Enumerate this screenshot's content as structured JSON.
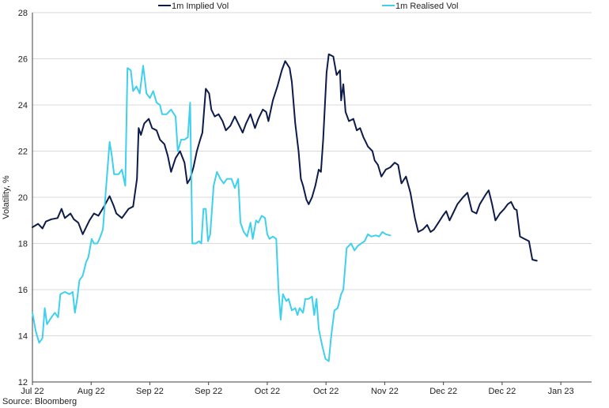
{
  "chart_data": {
    "type": "line",
    "ylabel": "Volatility, %",
    "ylim": [
      12,
      28
    ],
    "yticks": [
      12,
      14,
      16,
      18,
      20,
      22,
      24,
      26,
      28
    ],
    "xlim": [
      0,
      1
    ],
    "xticks": [
      {
        "x": 0.0,
        "label": "Jul 22"
      },
      {
        "x": 0.105,
        "label": "Aug 22"
      },
      {
        "x": 0.21,
        "label": "Sep 22"
      },
      {
        "x": 0.315,
        "label": "Sep 22"
      },
      {
        "x": 0.42,
        "label": "Oct 22"
      },
      {
        "x": 0.525,
        "label": "Oct 22"
      },
      {
        "x": 0.63,
        "label": "Nov 22"
      },
      {
        "x": 0.735,
        "label": "Dec 22"
      },
      {
        "x": 0.84,
        "label": "Dec 22"
      },
      {
        "x": 0.945,
        "label": "Jan 23"
      }
    ],
    "grid": "horizontal",
    "legend": "top",
    "source": "Source: Bloomberg",
    "series": [
      {
        "name": "1m Implied Vol",
        "color": "#0d1b4b",
        "points": [
          [
            0.0,
            18.7
          ],
          [
            0.01,
            18.85
          ],
          [
            0.018,
            18.65
          ],
          [
            0.024,
            18.95
          ],
          [
            0.034,
            19.05
          ],
          [
            0.045,
            19.1
          ],
          [
            0.052,
            19.5
          ],
          [
            0.058,
            19.1
          ],
          [
            0.068,
            19.3
          ],
          [
            0.074,
            19.05
          ],
          [
            0.082,
            18.9
          ],
          [
            0.09,
            18.4
          ],
          [
            0.102,
            19.0
          ],
          [
            0.11,
            19.3
          ],
          [
            0.118,
            19.2
          ],
          [
            0.128,
            19.6
          ],
          [
            0.138,
            20.05
          ],
          [
            0.145,
            19.65
          ],
          [
            0.15,
            19.3
          ],
          [
            0.16,
            19.1
          ],
          [
            0.172,
            19.5
          ],
          [
            0.18,
            19.6
          ],
          [
            0.187,
            20.8
          ],
          [
            0.19,
            23.0
          ],
          [
            0.194,
            22.7
          ],
          [
            0.2,
            23.2
          ],
          [
            0.208,
            23.4
          ],
          [
            0.214,
            23.0
          ],
          [
            0.222,
            22.9
          ],
          [
            0.228,
            22.5
          ],
          [
            0.236,
            22.3
          ],
          [
            0.242,
            21.8
          ],
          [
            0.248,
            21.1
          ],
          [
            0.256,
            21.7
          ],
          [
            0.264,
            22.0
          ],
          [
            0.272,
            21.5
          ],
          [
            0.277,
            20.6
          ],
          [
            0.282,
            20.8
          ],
          [
            0.288,
            21.3
          ],
          [
            0.294,
            22.0
          ],
          [
            0.3,
            22.5
          ],
          [
            0.304,
            22.8
          ],
          [
            0.31,
            24.7
          ],
          [
            0.316,
            24.5
          ],
          [
            0.32,
            23.8
          ],
          [
            0.326,
            23.5
          ],
          [
            0.333,
            23.6
          ],
          [
            0.34,
            23.3
          ],
          [
            0.346,
            22.9
          ],
          [
            0.354,
            23.1
          ],
          [
            0.362,
            23.5
          ],
          [
            0.37,
            23.1
          ],
          [
            0.376,
            22.8
          ],
          [
            0.382,
            23.2
          ],
          [
            0.39,
            23.6
          ],
          [
            0.398,
            23.0
          ],
          [
            0.404,
            23.4
          ],
          [
            0.412,
            23.8
          ],
          [
            0.418,
            23.7
          ],
          [
            0.422,
            23.3
          ],
          [
            0.43,
            24.2
          ],
          [
            0.438,
            24.8
          ],
          [
            0.446,
            25.5
          ],
          [
            0.452,
            25.9
          ],
          [
            0.46,
            25.6
          ],
          [
            0.464,
            25.0
          ],
          [
            0.47,
            23.2
          ],
          [
            0.476,
            22.0
          ],
          [
            0.48,
            20.8
          ],
          [
            0.484,
            20.5
          ],
          [
            0.49,
            19.9
          ],
          [
            0.494,
            19.7
          ],
          [
            0.5,
            20.0
          ],
          [
            0.506,
            20.5
          ],
          [
            0.512,
            21.2
          ],
          [
            0.516,
            21.1
          ],
          [
            0.52,
            22.5
          ],
          [
            0.526,
            25.4
          ],
          [
            0.53,
            26.2
          ],
          [
            0.538,
            26.1
          ],
          [
            0.544,
            25.3
          ],
          [
            0.55,
            25.5
          ],
          [
            0.552,
            24.2
          ],
          [
            0.556,
            24.9
          ],
          [
            0.56,
            23.7
          ],
          [
            0.566,
            23.3
          ],
          [
            0.574,
            23.4
          ],
          [
            0.58,
            22.9
          ],
          [
            0.586,
            23.0
          ],
          [
            0.592,
            22.6
          ],
          [
            0.596,
            22.4
          ],
          [
            0.6,
            22.2
          ],
          [
            0.608,
            22.0
          ],
          [
            0.612,
            21.6
          ],
          [
            0.618,
            21.4
          ],
          [
            0.624,
            20.9
          ],
          [
            0.632,
            21.2
          ],
          [
            0.64,
            21.3
          ],
          [
            0.648,
            21.5
          ],
          [
            0.654,
            21.4
          ],
          [
            0.66,
            20.6
          ],
          [
            0.668,
            20.9
          ],
          [
            0.676,
            20.2
          ],
          [
            0.684,
            19.1
          ],
          [
            0.69,
            18.5
          ],
          [
            0.698,
            18.6
          ],
          [
            0.706,
            18.8
          ],
          [
            0.712,
            18.5
          ],
          [
            0.718,
            18.6
          ],
          [
            0.726,
            18.9
          ],
          [
            0.734,
            19.2
          ],
          [
            0.74,
            19.4
          ],
          [
            0.746,
            19.0
          ],
          [
            0.752,
            19.3
          ],
          [
            0.76,
            19.7
          ],
          [
            0.77,
            20.0
          ],
          [
            0.778,
            20.2
          ],
          [
            0.786,
            19.4
          ],
          [
            0.794,
            19.3
          ],
          [
            0.8,
            19.7
          ],
          [
            0.81,
            20.1
          ],
          [
            0.816,
            20.3
          ],
          [
            0.822,
            19.7
          ],
          [
            0.828,
            19.0
          ],
          [
            0.836,
            19.3
          ],
          [
            0.844,
            19.5
          ],
          [
            0.85,
            19.7
          ],
          [
            0.856,
            19.8
          ],
          [
            0.862,
            19.5
          ],
          [
            0.866,
            19.45
          ],
          [
            0.872,
            18.3
          ],
          [
            0.88,
            18.2
          ],
          [
            0.888,
            18.1
          ],
          [
            0.894,
            17.3
          ],
          [
            0.902,
            17.25
          ]
        ]
      },
      {
        "name": "1m Realised Vol",
        "color": "#3fd0ee",
        "points": [
          [
            0.0,
            15.0
          ],
          [
            0.006,
            14.2
          ],
          [
            0.012,
            13.7
          ],
          [
            0.018,
            13.9
          ],
          [
            0.022,
            15.2
          ],
          [
            0.026,
            14.5
          ],
          [
            0.034,
            14.8
          ],
          [
            0.04,
            15.0
          ],
          [
            0.046,
            14.8
          ],
          [
            0.05,
            15.8
          ],
          [
            0.058,
            15.9
          ],
          [
            0.066,
            15.8
          ],
          [
            0.072,
            15.9
          ],
          [
            0.076,
            15.0
          ],
          [
            0.08,
            15.6
          ],
          [
            0.084,
            16.4
          ],
          [
            0.09,
            16.6
          ],
          [
            0.096,
            17.2
          ],
          [
            0.1,
            17.4
          ],
          [
            0.106,
            18.2
          ],
          [
            0.11,
            18.0
          ],
          [
            0.116,
            18.0
          ],
          [
            0.12,
            18.2
          ],
          [
            0.126,
            18.6
          ],
          [
            0.132,
            20.5
          ],
          [
            0.138,
            22.4
          ],
          [
            0.142,
            21.8
          ],
          [
            0.146,
            21.0
          ],
          [
            0.154,
            21.0
          ],
          [
            0.16,
            21.2
          ],
          [
            0.166,
            20.5
          ],
          [
            0.17,
            25.6
          ],
          [
            0.176,
            25.5
          ],
          [
            0.18,
            24.6
          ],
          [
            0.186,
            24.8
          ],
          [
            0.192,
            24.5
          ],
          [
            0.198,
            25.7
          ],
          [
            0.204,
            24.5
          ],
          [
            0.21,
            24.3
          ],
          [
            0.216,
            24.6
          ],
          [
            0.222,
            24.1
          ],
          [
            0.228,
            24.0
          ],
          [
            0.232,
            23.6
          ],
          [
            0.24,
            23.6
          ],
          [
            0.248,
            23.8
          ],
          [
            0.256,
            23.5
          ],
          [
            0.26,
            22.0
          ],
          [
            0.266,
            22.5
          ],
          [
            0.272,
            22.5
          ],
          [
            0.278,
            22.6
          ],
          [
            0.282,
            24.1
          ],
          [
            0.286,
            18.0
          ],
          [
            0.292,
            18.0
          ],
          [
            0.298,
            18.1
          ],
          [
            0.302,
            18.0
          ],
          [
            0.306,
            19.5
          ],
          [
            0.31,
            19.5
          ],
          [
            0.314,
            18.1
          ],
          [
            0.318,
            18.4
          ],
          [
            0.324,
            20.5
          ],
          [
            0.33,
            21.1
          ],
          [
            0.336,
            20.8
          ],
          [
            0.342,
            20.6
          ],
          [
            0.348,
            20.8
          ],
          [
            0.356,
            20.8
          ],
          [
            0.362,
            20.4
          ],
          [
            0.368,
            20.8
          ],
          [
            0.372,
            18.9
          ],
          [
            0.378,
            18.5
          ],
          [
            0.384,
            18.3
          ],
          [
            0.39,
            18.9
          ],
          [
            0.394,
            18.2
          ],
          [
            0.4,
            19.0
          ],
          [
            0.404,
            18.9
          ],
          [
            0.41,
            19.2
          ],
          [
            0.416,
            19.1
          ],
          [
            0.42,
            18.4
          ],
          [
            0.424,
            18.2
          ],
          [
            0.43,
            18.3
          ],
          [
            0.436,
            18.2
          ],
          [
            0.44,
            16.0
          ],
          [
            0.444,
            14.7
          ],
          [
            0.448,
            15.8
          ],
          [
            0.454,
            15.5
          ],
          [
            0.458,
            15.6
          ],
          [
            0.464,
            15.1
          ],
          [
            0.47,
            15.2
          ],
          [
            0.474,
            14.9
          ],
          [
            0.478,
            15.2
          ],
          [
            0.484,
            15.0
          ],
          [
            0.488,
            15.6
          ],
          [
            0.494,
            15.6
          ],
          [
            0.5,
            15.7
          ],
          [
            0.504,
            14.9
          ],
          [
            0.508,
            15.6
          ],
          [
            0.512,
            14.3
          ],
          [
            0.518,
            13.6
          ],
          [
            0.524,
            13.0
          ],
          [
            0.53,
            12.9
          ],
          [
            0.534,
            13.9
          ],
          [
            0.54,
            15.1
          ],
          [
            0.546,
            15.2
          ],
          [
            0.552,
            15.8
          ],
          [
            0.556,
            16.0
          ],
          [
            0.562,
            17.8
          ],
          [
            0.57,
            18.0
          ],
          [
            0.576,
            17.7
          ],
          [
            0.582,
            17.9
          ],
          [
            0.588,
            18.0
          ],
          [
            0.594,
            18.1
          ],
          [
            0.6,
            18.4
          ],
          [
            0.606,
            18.3
          ],
          [
            0.614,
            18.35
          ],
          [
            0.62,
            18.3
          ],
          [
            0.626,
            18.5
          ],
          [
            0.632,
            18.4
          ],
          [
            0.64,
            18.35
          ]
        ]
      }
    ]
  }
}
